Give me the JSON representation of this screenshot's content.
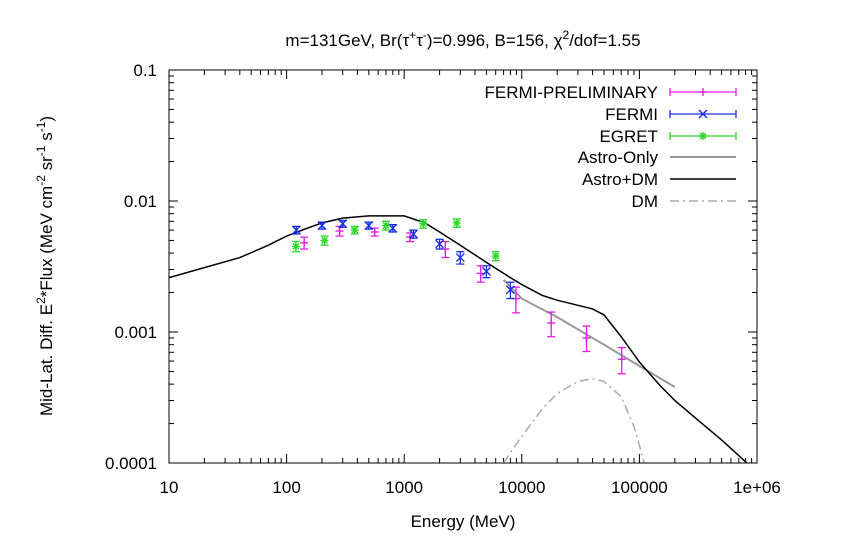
{
  "chart_data": {
    "type": "scatter",
    "title_parts": {
      "prefix": "m=131GeV, Br(",
      "tau": "τ",
      "plus": "+",
      "minus": "-",
      "suffix": ")=0.996, B=156, ",
      "chi": "χ",
      "chi_exp": "2",
      "chi_rest": "/dof=1.55"
    },
    "xlabel": "Energy (MeV)",
    "ylabel_parts": {
      "a": "Mid-Lat. Diff. E",
      "a_exp": "2",
      "b": "*Flux (MeV cm",
      "b_exp": "-2",
      "c": " sr",
      "c_exp": "-1",
      "d": " s",
      "d_exp": "-1",
      "e": ")"
    },
    "xscale": "log",
    "yscale": "log",
    "xlim": [
      10,
      1000000
    ],
    "ylim": [
      0.0001,
      0.1
    ],
    "xticks": [
      10,
      100,
      1000,
      10000,
      100000,
      1000000
    ],
    "xtick_labels": [
      "10",
      "100",
      "1000",
      "10000",
      "100000",
      "1e+06"
    ],
    "yticks": [
      0.0001,
      0.001,
      0.01,
      0.1
    ],
    "ytick_labels": [
      "0.0001",
      "0.001",
      "0.01",
      "0.1"
    ],
    "legend_position": "top-right",
    "series": [
      {
        "name": "FERMI-PRELIMINARY",
        "kind": "errorbar",
        "marker": "plus",
        "color": "#e020e0",
        "points": [
          {
            "x": 141,
            "y": 0.0048,
            "lo": 0.0043,
            "hi": 0.0053
          },
          {
            "x": 282,
            "y": 0.0059,
            "lo": 0.0054,
            "hi": 0.0064
          },
          {
            "x": 562,
            "y": 0.0058,
            "lo": 0.0054,
            "hi": 0.0062
          },
          {
            "x": 1122,
            "y": 0.0053,
            "lo": 0.0049,
            "hi": 0.0057
          },
          {
            "x": 2239,
            "y": 0.0043,
            "lo": 0.0037,
            "hi": 0.0049
          },
          {
            "x": 4467,
            "y": 0.0028,
            "lo": 0.0024,
            "hi": 0.0032
          },
          {
            "x": 8913,
            "y": 0.0018,
            "lo": 0.0014,
            "hi": 0.0022
          },
          {
            "x": 17783,
            "y": 0.00117,
            "lo": 0.00092,
            "hi": 0.00142
          },
          {
            "x": 35481,
            "y": 0.0009,
            "lo": 0.00071,
            "hi": 0.00111
          },
          {
            "x": 70795,
            "y": 0.00062,
            "lo": 0.00048,
            "hi": 0.00076
          }
        ]
      },
      {
        "name": "FERMI",
        "kind": "errorbar",
        "marker": "cross",
        "color": "#1830e0",
        "points": [
          {
            "x": 121,
            "y": 0.006,
            "lo": 0.0056,
            "hi": 0.0064
          },
          {
            "x": 200,
            "y": 0.0065,
            "lo": 0.0061,
            "hi": 0.0069
          },
          {
            "x": 300,
            "y": 0.0067,
            "lo": 0.0063,
            "hi": 0.0071
          },
          {
            "x": 500,
            "y": 0.0065,
            "lo": 0.0061,
            "hi": 0.0069
          },
          {
            "x": 800,
            "y": 0.0062,
            "lo": 0.0058,
            "hi": 0.0066
          },
          {
            "x": 1200,
            "y": 0.0056,
            "lo": 0.0052,
            "hi": 0.006
          },
          {
            "x": 2000,
            "y": 0.0047,
            "lo": 0.0043,
            "hi": 0.0051
          },
          {
            "x": 3000,
            "y": 0.0037,
            "lo": 0.0033,
            "hi": 0.0041
          },
          {
            "x": 5000,
            "y": 0.0029,
            "lo": 0.0026,
            "hi": 0.0032
          },
          {
            "x": 8000,
            "y": 0.0021,
            "lo": 0.0018,
            "hi": 0.0024
          }
        ]
      },
      {
        "name": "EGRET",
        "kind": "errorbar",
        "marker": "star",
        "color": "#28d828",
        "points": [
          {
            "x": 120,
            "y": 0.0045,
            "lo": 0.0041,
            "hi": 0.0049
          },
          {
            "x": 210,
            "y": 0.005,
            "lo": 0.0046,
            "hi": 0.0054
          },
          {
            "x": 380,
            "y": 0.006,
            "lo": 0.0056,
            "hi": 0.0064
          },
          {
            "x": 700,
            "y": 0.0065,
            "lo": 0.006,
            "hi": 0.007
          },
          {
            "x": 1450,
            "y": 0.0067,
            "lo": 0.0062,
            "hi": 0.0072
          },
          {
            "x": 2800,
            "y": 0.0068,
            "lo": 0.0063,
            "hi": 0.0073
          },
          {
            "x": 6000,
            "y": 0.0038,
            "lo": 0.0035,
            "hi": 0.0041
          }
        ]
      },
      {
        "name": "Astro-Only",
        "kind": "line",
        "style": "solid",
        "color": "#999999",
        "x": [
          7000,
          10000,
          20000,
          50000,
          100000,
          200000
        ],
        "y": [
          0.0025,
          0.0018,
          0.0013,
          0.0008,
          0.00055,
          0.00038
        ]
      },
      {
        "name": "Astro+DM",
        "kind": "line",
        "style": "solid",
        "color": "#000000",
        "x": [
          10,
          20,
          40,
          70,
          100,
          150,
          200,
          300,
          500,
          1000,
          1500,
          2000,
          3000,
          5000,
          8000,
          10000,
          15000,
          20000,
          30000,
          40000,
          50000,
          70000,
          100000,
          150000,
          200000,
          300000,
          500000,
          1000000
        ],
        "y": [
          0.0026,
          0.0031,
          0.0037,
          0.0046,
          0.0054,
          0.0062,
          0.0068,
          0.0074,
          0.0077,
          0.0077,
          0.0068,
          0.0058,
          0.0046,
          0.0034,
          0.0026,
          0.0023,
          0.0019,
          0.00175,
          0.0016,
          0.0015,
          0.00135,
          0.00092,
          0.00059,
          0.00039,
          0.0003,
          0.00022,
          0.00015,
          8.5e-05
        ]
      },
      {
        "name": "DM",
        "kind": "line",
        "style": "dash-dot",
        "color": "#aaaaaa",
        "x": [
          7000,
          8000,
          10000,
          15000,
          20000,
          30000,
          40000,
          50000,
          70000,
          90000,
          110000
        ],
        "y": [
          0.0001,
          0.00012,
          0.00016,
          0.00026,
          0.00034,
          0.00042,
          0.00044,
          0.00042,
          0.00032,
          0.00019,
          0.0001
        ]
      }
    ]
  }
}
